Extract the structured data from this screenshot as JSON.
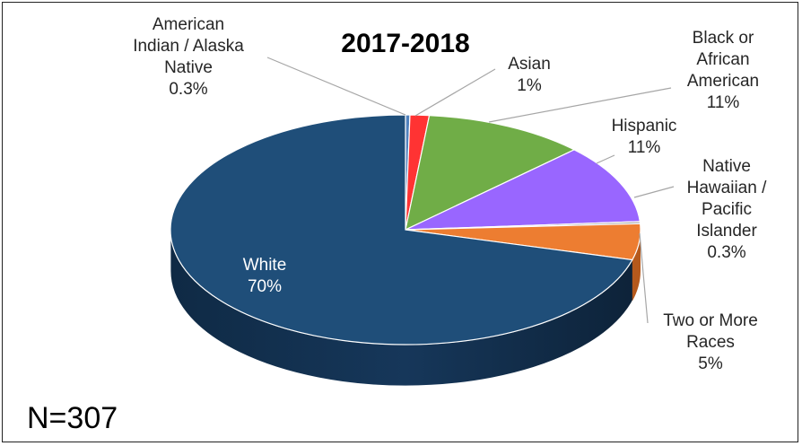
{
  "chart_data": {
    "type": "pie",
    "title": "2017-2018",
    "note": "N=307",
    "slices": [
      {
        "label": [
          "American",
          "Indian / Alaska",
          "Native"
        ],
        "pct_label": "0.3%",
        "value": 0.3,
        "color": "#4f81bd"
      },
      {
        "label": [
          "Asian"
        ],
        "pct_label": "1%",
        "value": 1.3,
        "color": "#ff3333"
      },
      {
        "label": [
          "Black or",
          "African",
          "American"
        ],
        "pct_label": "11%",
        "value": 11,
        "color": "#70ad47"
      },
      {
        "label": [
          "Hispanic"
        ],
        "pct_label": "11%",
        "value": 11,
        "color": "#9966ff"
      },
      {
        "label": [
          "Native",
          "Hawaiian /",
          "Pacific",
          "Islander"
        ],
        "pct_label": "0.3%",
        "value": 0.3,
        "color": "#a0a0a0"
      },
      {
        "label": [
          "Two or More",
          "Races"
        ],
        "pct_label": "5%",
        "value": 5,
        "color": "#ed7d31"
      },
      {
        "label": [
          "White"
        ],
        "pct_label": "70%",
        "value": 70,
        "color": "#1f4e79"
      }
    ]
  }
}
